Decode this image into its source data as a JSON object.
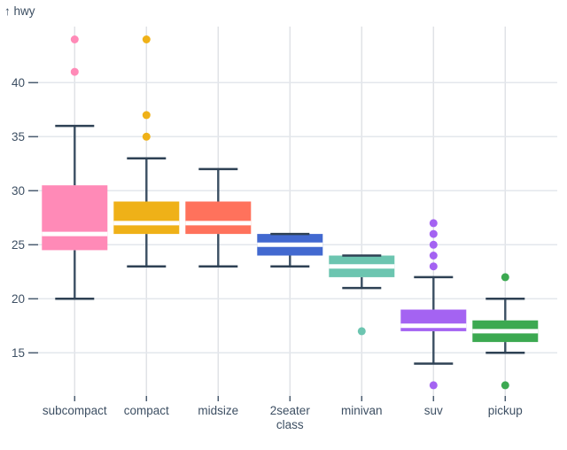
{
  "page": {
    "background": "#ffffff"
  },
  "chart_data": {
    "type": "boxplot",
    "title": "",
    "ylabel": "hwy",
    "ylabel_display": "↑ hwy",
    "xlabel": "class",
    "grid": true,
    "y_ticks": [
      15,
      20,
      25,
      30,
      35,
      40
    ],
    "y_domain": [
      11,
      45.2
    ],
    "categories": [
      "subcompact",
      "compact",
      "midsize",
      "2seater",
      "minivan",
      "suv",
      "pickup"
    ],
    "boxes": [
      {
        "category": "subcompact",
        "color": "#ff8ab7",
        "whisker_low": 20,
        "q1": 24.5,
        "median": 26,
        "q3": 30.5,
        "whisker_high": 36,
        "outliers": [
          41,
          44
        ]
      },
      {
        "category": "compact",
        "color": "#efb118",
        "whisker_low": 23,
        "q1": 26,
        "median": 27,
        "q3": 29,
        "whisker_high": 33,
        "outliers": [
          35,
          37,
          44
        ]
      },
      {
        "category": "midsize",
        "color": "#ff725c",
        "whisker_low": 23,
        "q1": 26,
        "median": 27,
        "q3": 29,
        "whisker_high": 32,
        "outliers": []
      },
      {
        "category": "2seater",
        "color": "#4269d0",
        "whisker_low": 23,
        "q1": 24,
        "median": 25,
        "q3": 26,
        "whisker_high": 26,
        "outliers": []
      },
      {
        "category": "minivan",
        "color": "#6cc5b0",
        "whisker_low": 21,
        "q1": 22,
        "median": 23,
        "q3": 24,
        "whisker_high": 24,
        "outliers": [
          17
        ]
      },
      {
        "category": "suv",
        "color": "#a463f2",
        "whisker_low": 14,
        "q1": 17,
        "median": 17.5,
        "q3": 19,
        "whisker_high": 22,
        "outliers": [
          23,
          24,
          25,
          26,
          27,
          12
        ]
      },
      {
        "category": "pickup",
        "color": "#3ca951",
        "whisker_low": 15,
        "q1": 16,
        "median": 17,
        "q3": 18,
        "whisker_high": 20,
        "outliers": [
          22,
          12
        ]
      }
    ]
  },
  "style": {
    "axis_text_color": "#3d4f63",
    "tick_color": "#4a5c70",
    "grid_h_color": "#e3e7ec",
    "grid_v_color": "#e0e2e6",
    "whisker_color": "#3a4e62",
    "cap_color": "#2e4154",
    "median_color": "#ffffff"
  }
}
